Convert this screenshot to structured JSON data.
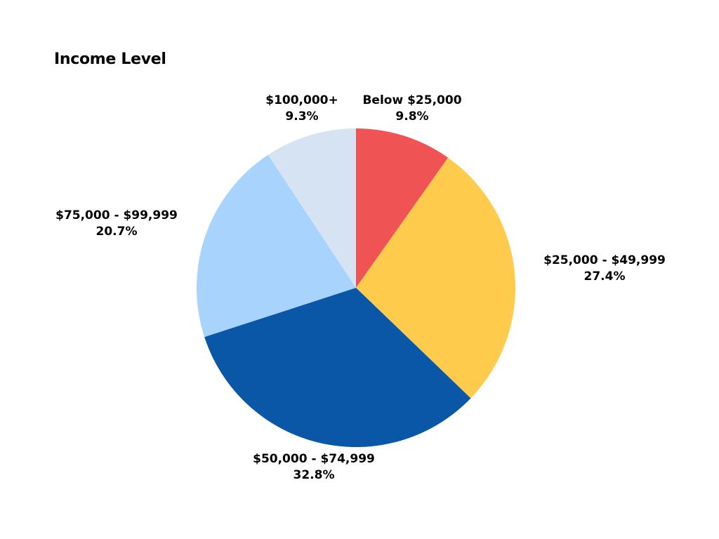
{
  "chart_data": {
    "type": "pie",
    "title": "Income Level",
    "slices": [
      {
        "label": "Below $25,000",
        "value": 9.8,
        "display": "9.8%",
        "color": "#ef5353"
      },
      {
        "label": "$25,000 - $49,999",
        "value": 27.4,
        "display": "27.4%",
        "color": "#ffcb4c"
      },
      {
        "label": "$50,000 - $74,999",
        "value": 32.8,
        "display": "32.8%",
        "color": "#0957a6"
      },
      {
        "label": "$75,000 - $99,999",
        "value": 20.7,
        "display": "20.7%",
        "color": "#a8d3fd"
      },
      {
        "label": "$100,000+",
        "value": 9.3,
        "display": "9.3%",
        "color": "#d6e3f3"
      }
    ],
    "start_angle": "top",
    "direction": "clockwise",
    "legend": "none"
  }
}
